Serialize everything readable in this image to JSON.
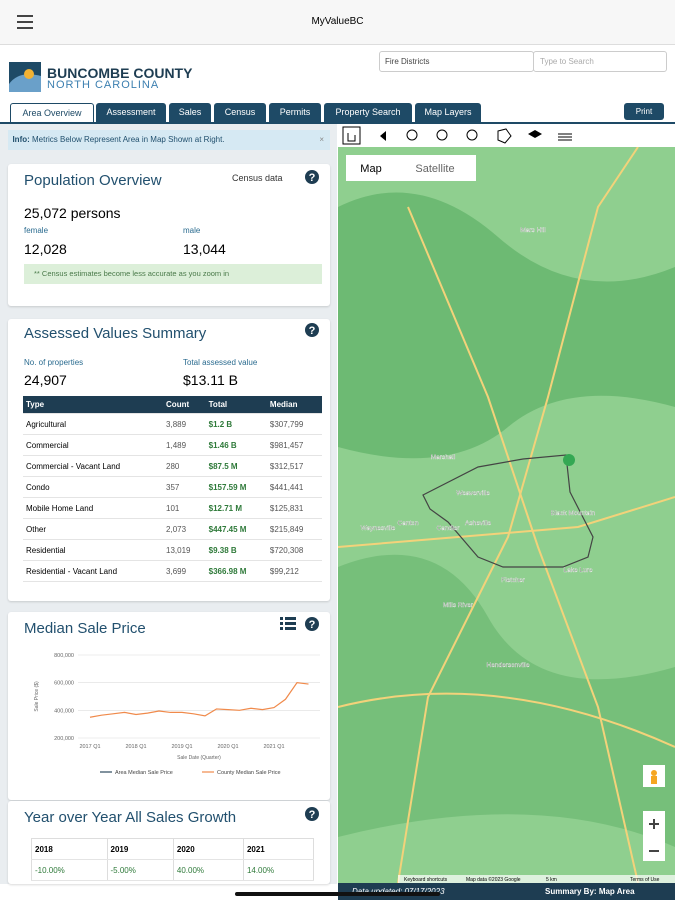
{
  "top_bar": {
    "title": "MyValueBC"
  },
  "header": {
    "county": "BUNCOMBE COUNTY",
    "state": "NORTH CAROLINA",
    "layer_select": "Fire Districts",
    "search_placeholder": "Type to Search"
  },
  "tabs": [
    "Area Overview",
    "Assessment",
    "Sales",
    "Census",
    "Permits",
    "Property Search",
    "Map Layers"
  ],
  "print": "Print",
  "info": {
    "label": "Info:",
    "text": "Metrics Below Represent Area in Map Shown at Right."
  },
  "population": {
    "title": "Population Overview",
    "link": "Census data",
    "total": "25,072 persons",
    "female_label": "female",
    "female": "12,028",
    "male_label": "male",
    "male": "13,044",
    "note": "** Census estimates become less accurate as you zoom in"
  },
  "assessed": {
    "title": "Assessed Values Summary",
    "properties_label": "No. of properties",
    "properties": "24,907",
    "total_label": "Total assessed value",
    "total": "$13.11 B",
    "table": {
      "header": [
        "Type",
        "Count",
        "Total",
        "Median"
      ],
      "rows": [
        [
          "Agricultural",
          "3,889",
          "$1.2 B",
          "$307,799"
        ],
        [
          "Commercial",
          "1,489",
          "$1.46 B",
          "$981,457"
        ],
        [
          "Commercial - Vacant Land",
          "280",
          "$87.5 M",
          "$312,517"
        ],
        [
          "Condo",
          "357",
          "$157.59 M",
          "$441,441"
        ],
        [
          "Mobile Home Land",
          "101",
          "$12.71 M",
          "$125,831"
        ],
        [
          "Other",
          "2,073",
          "$447.45 M",
          "$215,849"
        ],
        [
          "Residential",
          "13,019",
          "$9.38 B",
          "$720,308"
        ],
        [
          "Residential - Vacant Land",
          "3,699",
          "$366.98 M",
          "$99,212"
        ]
      ]
    }
  },
  "median_sale_price": {
    "title": "Median Sale Price",
    "chart": {
      "type": "line",
      "y_label": "Sale Price ($)",
      "x_label": "Sale Date (Quarter)",
      "categories": [
        "2017 Q1",
        null,
        null,
        null,
        "2018 Q1",
        null,
        null,
        null,
        "2019 Q1",
        null,
        null,
        null,
        "2020 Q1",
        null,
        null,
        null,
        "2021 Q1",
        null,
        null,
        null
      ],
      "ylim": [
        200000,
        800000
      ],
      "yticks": [
        {
          "value": 200000,
          "label": "200,000"
        },
        {
          "value": 400000,
          "label": "400,000"
        },
        {
          "value": 600000,
          "label": "600,000"
        },
        {
          "value": 800000,
          "label": "800,000"
        }
      ],
      "grid": true,
      "series": [
        {
          "name": "Area Median Sale Price",
          "color": "#2d4a5e",
          "values": [
            null,
            null,
            null,
            null,
            null,
            null,
            null,
            null,
            null,
            null,
            null,
            null,
            null,
            null,
            null,
            null,
            null,
            null,
            null,
            null
          ]
        },
        {
          "name": "County Median Sale Price",
          "color": "#f08a4b",
          "values": [
            350000,
            365000,
            375000,
            385000,
            370000,
            380000,
            395000,
            385000,
            385000,
            375000,
            360000,
            410000,
            405000,
            400000,
            415000,
            405000,
            420000,
            480000,
            600000,
            590000
          ]
        }
      ]
    }
  },
  "yoy": {
    "title": "Year over Year All Sales Growth",
    "header": [
      "2018",
      "2019",
      "2020",
      "2021"
    ],
    "values": [
      "-10.00%",
      "-5.00%",
      "40.00%",
      "14.00%"
    ]
  },
  "map": {
    "tabs": [
      "Map",
      "Satellite"
    ],
    "places": [
      "Marshall",
      "Weaverville",
      "Asheville",
      "Black Mountain",
      "Canton",
      "Candler",
      "Waynesville",
      "Fletcher",
      "Mills River",
      "Hendersonville",
      "Lake Lure",
      "Mars Hill"
    ],
    "shortcuts": "Keyboard shortcuts",
    "attribution": "Map data ©2023 Google",
    "scale": "5 km",
    "terms": "Terms of Use"
  },
  "footer": {
    "updated": "Data updated: 07/17/2023",
    "summary_label": "Summary By:",
    "summary": "Map Area"
  }
}
